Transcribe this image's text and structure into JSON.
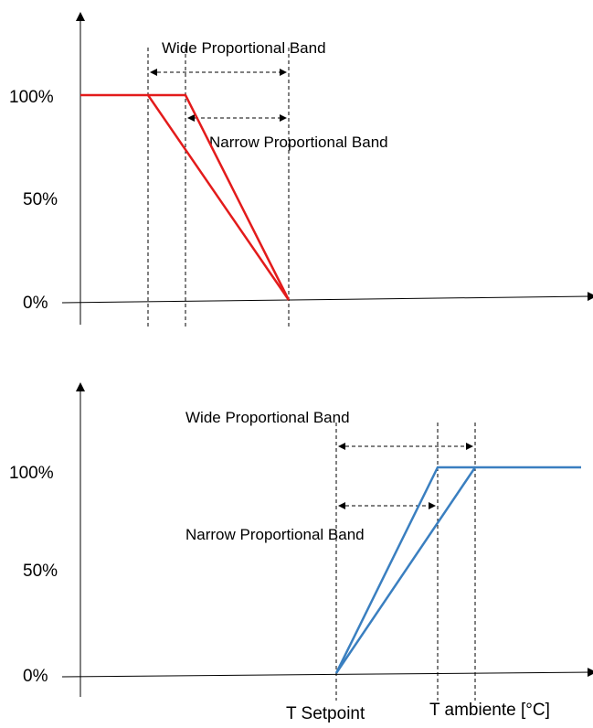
{
  "top_diagram": {
    "y_ticks": {
      "high": "100%",
      "mid": "50%",
      "low": "0%"
    },
    "wide_band_label": "Wide Proportional Band",
    "narrow_band_label": "Narrow Proportional Band",
    "line_color": "#e31b1b"
  },
  "bottom_diagram": {
    "y_ticks": {
      "high": "100%",
      "mid": "50%",
      "low": "0%"
    },
    "wide_band_label": "Wide Proportional Band",
    "narrow_band_label": "Narrow Proportional Band",
    "line_color": "#3a7fc0",
    "x_labels": {
      "setpoint": "T Setpoint",
      "ambient": "T ambiente [°C]"
    }
  }
}
